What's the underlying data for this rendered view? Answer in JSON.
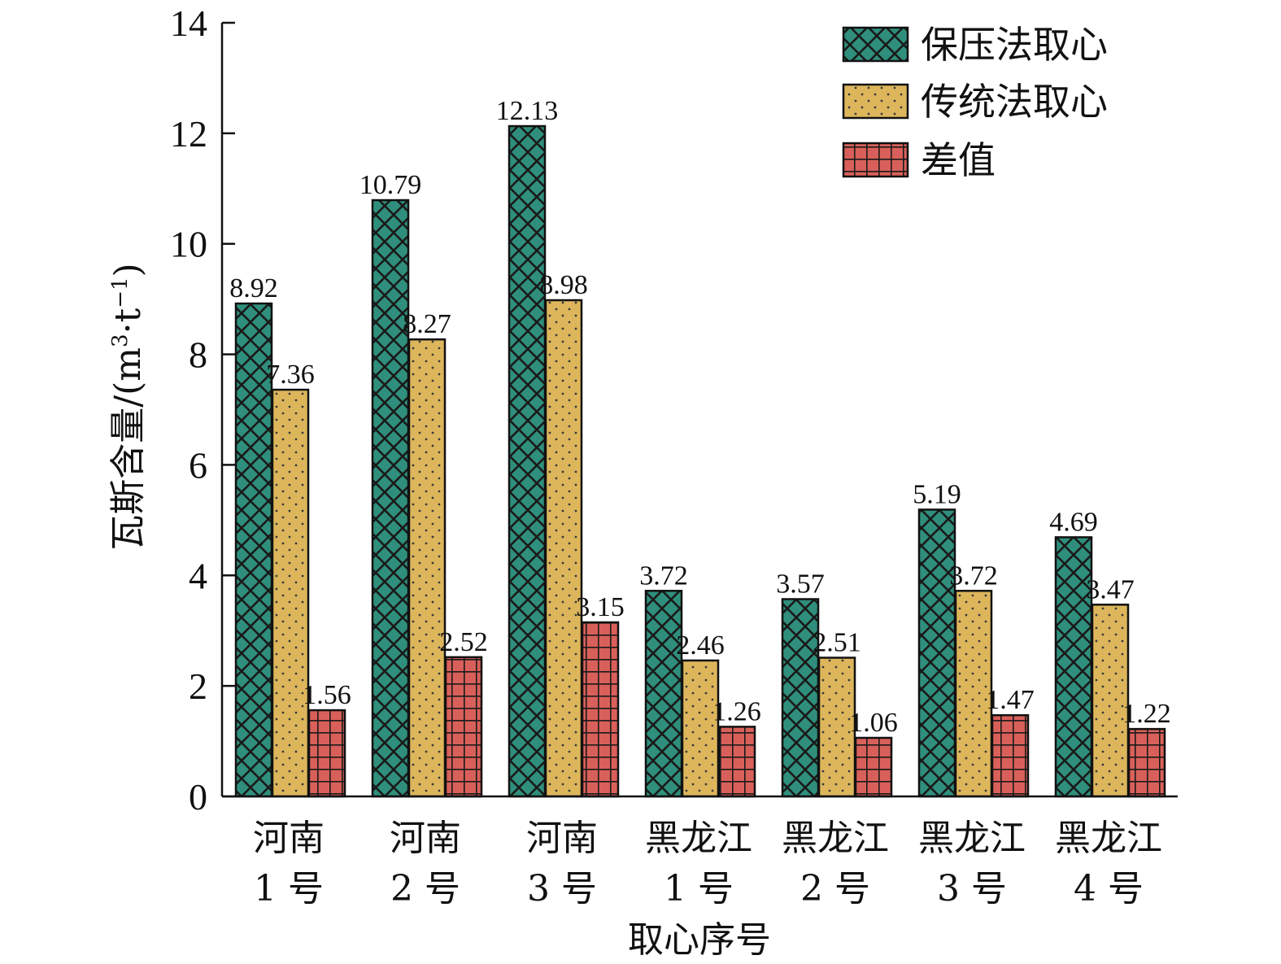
{
  "chart_data": {
    "type": "bar",
    "categories": [
      [
        "河南",
        "1 号"
      ],
      [
        "河南",
        "2 号"
      ],
      [
        "河南",
        "3 号"
      ],
      [
        "黑龙江",
        "1 号"
      ],
      [
        "黑龙江",
        "2 号"
      ],
      [
        "黑龙江",
        "3 号"
      ],
      [
        "黑龙江",
        "4 号"
      ]
    ],
    "series": [
      {
        "name": "保压法取心",
        "values": [
          8.92,
          10.79,
          12.13,
          3.72,
          3.57,
          5.19,
          4.69
        ],
        "color": "#2f8f7c",
        "pattern": "crosshatch"
      },
      {
        "name": "传统法取心",
        "values": [
          7.36,
          8.27,
          8.98,
          2.46,
          2.51,
          3.72,
          3.47
        ],
        "color": "#ddb65c",
        "pattern": "dots"
      },
      {
        "name": "差值",
        "values": [
          1.56,
          2.52,
          3.15,
          1.26,
          1.06,
          1.47,
          1.22
        ],
        "color": "#d9605a",
        "pattern": "grid"
      }
    ],
    "value_labels": [
      [
        "8.92",
        "10.79",
        "12.13",
        "3.72",
        "3.57",
        "5.19",
        "4.69"
      ],
      [
        "7.36",
        "8.27",
        "8.98",
        "2.46",
        "2.51",
        "3.72",
        "3.47"
      ],
      [
        "1.56",
        "2.52",
        "3.15",
        "1.26",
        "1.06",
        "1.47",
        "1.22"
      ]
    ],
    "xlabel": "取心序号",
    "ylabel": {
      "main": "瓦斯含量/(m",
      "sup1": "3",
      "mid": "·t",
      "sup2": "−1",
      "end": ")"
    },
    "ylim": [
      0,
      14
    ],
    "yticks": [
      "0",
      "2",
      "4",
      "6",
      "8",
      "10",
      "12",
      "14"
    ],
    "grid": false,
    "legend_position": "top-right"
  }
}
